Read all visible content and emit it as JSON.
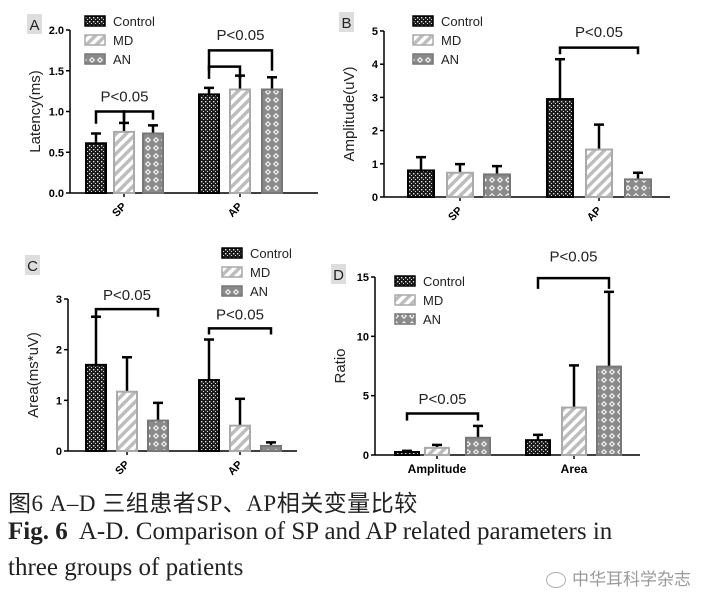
{
  "chart_data": [
    {
      "type": "bar",
      "panel": "A",
      "ylabel": "Latency(ms)",
      "ylim": [
        0,
        2.0
      ],
      "yticks": [
        "0.0",
        "0.5",
        "1.0",
        "1.5",
        "2.0"
      ],
      "ytick_values": [
        0,
        0.5,
        1.0,
        1.5,
        2.0
      ],
      "categories": [
        "SP",
        "AP"
      ],
      "legend": [
        "Control",
        "MD",
        "AN"
      ],
      "legend_position": "top-left",
      "series": [
        {
          "name": "Control",
          "values": [
            0.61,
            1.21
          ],
          "errors": [
            0.12,
            0.08
          ]
        },
        {
          "name": "MD",
          "values": [
            0.75,
            1.27
          ],
          "errors": [
            0.11,
            0.17
          ]
        },
        {
          "name": "AN",
          "values": [
            0.73,
            1.27
          ],
          "errors": [
            0.1,
            0.15
          ]
        }
      ],
      "annotations": [
        {
          "text": "P<0.05",
          "category": 0,
          "from": 0,
          "to": 1,
          "y": 1.0,
          "leg": 0.85,
          "label_y": 1.12,
          "show_label": true
        },
        {
          "text": "",
          "category": 0,
          "from": 1,
          "to": 2,
          "y": 1.0,
          "leg": 0.9,
          "show_label": false
        },
        {
          "text": "",
          "category": 1,
          "from": 0,
          "to": 1,
          "y": 1.55,
          "leg": 1.4,
          "show_label": false
        },
        {
          "text": "P<0.05",
          "category": 1,
          "from": 0,
          "to": 2,
          "y": 1.75,
          "leg": 1.5,
          "label_y": 1.88,
          "show_label": true
        }
      ]
    },
    {
      "type": "bar",
      "panel": "B",
      "ylabel": "Amplitude(uV)",
      "ylim": [
        0,
        5
      ],
      "yticks": [
        "0",
        "1",
        "2",
        "3",
        "4",
        "5"
      ],
      "ytick_values": [
        0,
        1,
        2,
        3,
        4,
        5
      ],
      "categories": [
        "SP",
        "AP"
      ],
      "legend": [
        "Control",
        "MD",
        "AN"
      ],
      "legend_position": "top-left",
      "series": [
        {
          "name": "Control",
          "values": [
            0.8,
            2.95
          ],
          "errors": [
            0.4,
            1.2
          ]
        },
        {
          "name": "MD",
          "values": [
            0.73,
            1.43
          ],
          "errors": [
            0.26,
            0.75
          ]
        },
        {
          "name": "AN",
          "values": [
            0.68,
            0.53
          ],
          "errors": [
            0.25,
            0.2
          ]
        }
      ],
      "annotations": [
        {
          "text": "P<0.05",
          "category": 1,
          "from": 0,
          "to": 2,
          "y": 4.5,
          "leg": 4.3,
          "label_y": 4.82,
          "show_label": true
        }
      ]
    },
    {
      "type": "bar",
      "panel": "C",
      "ylabel": "Area(ms*uV)",
      "ylim": [
        0,
        3
      ],
      "yticks": [
        "0",
        "1",
        "2",
        "3"
      ],
      "ytick_values": [
        0,
        1,
        2,
        3
      ],
      "categories": [
        "SP",
        "AP"
      ],
      "legend": [
        "Control",
        "MD",
        "AN"
      ],
      "legend_position": "top-right",
      "series": [
        {
          "name": "Control",
          "values": [
            1.7,
            1.4
          ],
          "errors": [
            0.95,
            0.8
          ]
        },
        {
          "name": "MD",
          "values": [
            1.17,
            0.5
          ],
          "errors": [
            0.68,
            0.53
          ]
        },
        {
          "name": "AN",
          "values": [
            0.6,
            0.1
          ],
          "errors": [
            0.35,
            0.07
          ]
        }
      ],
      "annotations": [
        {
          "text": "P<0.05",
          "category": 0,
          "from": 0,
          "to": 2,
          "y": 2.8,
          "leg": 2.65,
          "label_y": 2.98,
          "show_label": true
        },
        {
          "text": "P<0.05",
          "category": 1,
          "from": 0,
          "to": 2,
          "y": 2.42,
          "leg": 2.3,
          "label_y": 2.6,
          "show_label": true
        }
      ]
    },
    {
      "type": "bar",
      "panel": "D",
      "ylabel": "Ratio",
      "ylim": [
        0,
        15
      ],
      "yticks": [
        "0",
        "5",
        "10",
        "15"
      ],
      "ytick_values": [
        0,
        5,
        10,
        15
      ],
      "categories": [
        "Amplitude",
        "Area"
      ],
      "legend": [
        "Control",
        "MD",
        "AN"
      ],
      "legend_position": "top-left",
      "series": [
        {
          "name": "Control",
          "values": [
            0.25,
            1.25
          ],
          "errors": [
            0.1,
            0.45
          ]
        },
        {
          "name": "MD",
          "values": [
            0.6,
            4.0
          ],
          "errors": [
            0.25,
            3.55
          ]
        },
        {
          "name": "AN",
          "values": [
            1.45,
            7.45
          ],
          "errors": [
            1.0,
            6.3
          ]
        }
      ],
      "annotations": [
        {
          "text": "P<0.05",
          "category": 0,
          "from": 0,
          "to": 2,
          "y": 3.5,
          "leg": 2.9,
          "label_y": 4.3,
          "show_label": true
        },
        {
          "text": "P<0.05",
          "category": 1,
          "from": 0,
          "to": 2,
          "y": 14.9,
          "leg": 14.0,
          "label_y": 16.3,
          "show_label": true
        }
      ]
    }
  ],
  "caption": {
    "cn": "图6   A–D  三组患者SP、AP相关变量比较",
    "en_bold": "Fig. 6",
    "en_line1": "  A-D. Comparison of SP and AP related parameters in",
    "en_line2": "three groups of patients"
  },
  "watermark": "中华耳科学杂志",
  "colors": {
    "control": "#1a1a1a",
    "md": "#bdbdbd",
    "an": "#8a8a8a"
  }
}
